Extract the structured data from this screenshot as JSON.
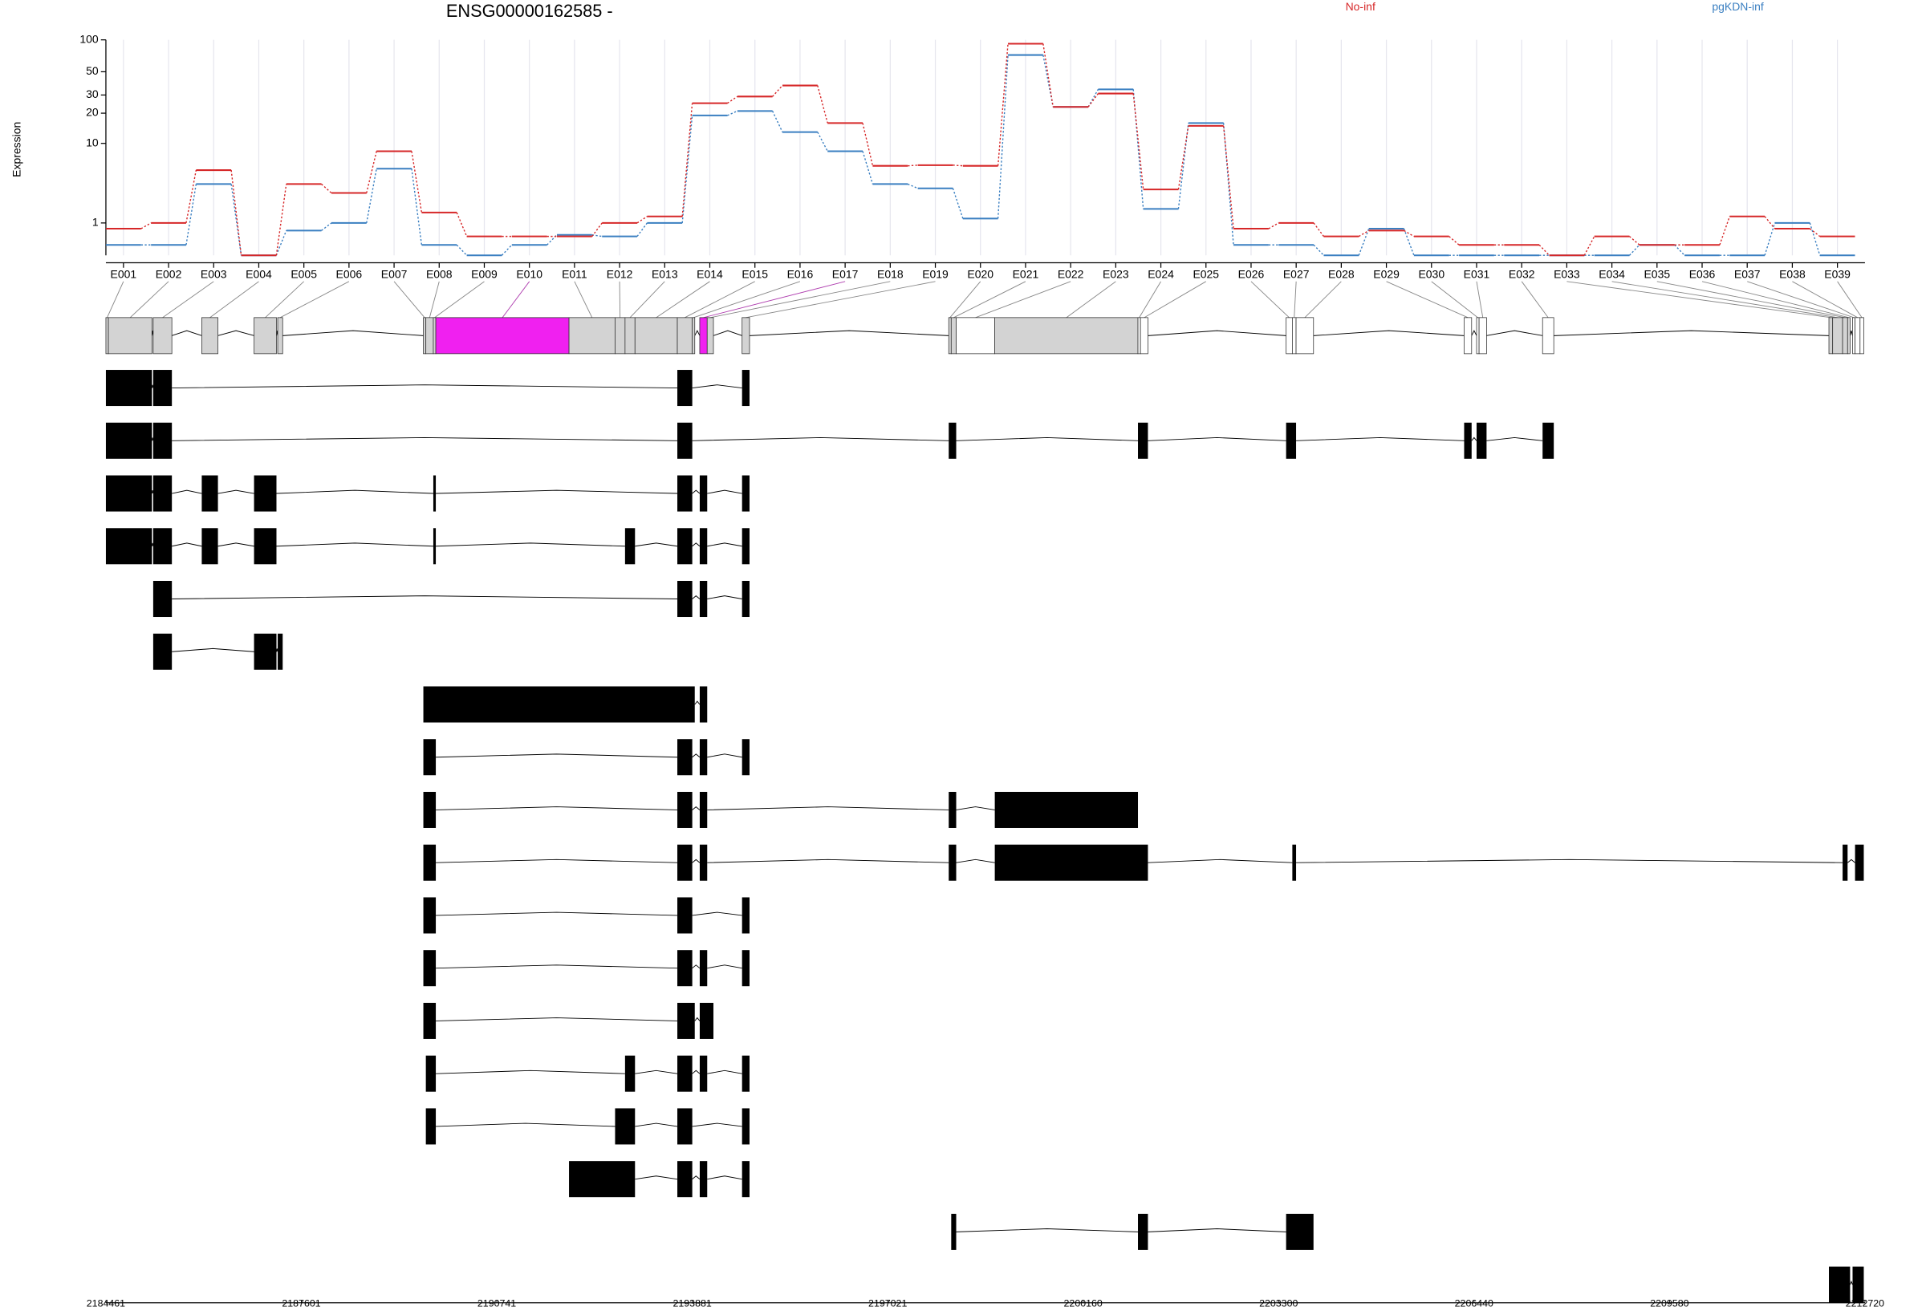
{
  "chart_data": {
    "type": "line",
    "title": "ENSG00000162585 -",
    "yaxis_label": "Expression",
    "scale": "log1p",
    "grid": true,
    "legend": "top",
    "categories": [
      "E001",
      "E002",
      "E003",
      "E004",
      "E005",
      "E006",
      "E007",
      "E008",
      "E009",
      "E010",
      "E011",
      "E012",
      "E013",
      "E014",
      "E015",
      "E016",
      "E017",
      "E018",
      "E019",
      "E020",
      "E021",
      "E022",
      "E023",
      "E024",
      "E025",
      "E026",
      "E027",
      "E028",
      "E029",
      "E030",
      "E031",
      "E032",
      "E033",
      "E034",
      "E035",
      "E036",
      "E037",
      "E038",
      "E039"
    ],
    "series": [
      {
        "name": "No-inf",
        "color": "#d62728",
        "values": [
          0.77,
          1.0,
          5.2,
          0,
          3.6,
          2.8,
          8.3,
          1.5,
          0.5,
          0.5,
          0.5,
          1.0,
          1.3,
          25,
          29,
          37,
          16,
          5.8,
          5.9,
          5.8,
          92,
          23,
          31,
          3.1,
          15,
          0.77,
          1.0,
          0.5,
          0.7,
          0.5,
          0.25,
          0.25,
          0,
          0.5,
          0.25,
          0.25,
          1.3,
          0.77,
          0.5
        ]
      },
      {
        "name": "pgKDN-inf",
        "color": "#3a7fc1",
        "values": [
          0.25,
          0.25,
          3.6,
          0,
          0.7,
          1.0,
          5.4,
          0.25,
          0,
          0.25,
          0.55,
          0.5,
          1.0,
          19,
          21,
          13,
          8.3,
          3.6,
          3.2,
          1.2,
          72,
          23,
          34,
          1.7,
          16,
          0.25,
          0.25,
          0,
          0.77,
          0,
          0,
          0,
          0,
          0,
          0.25,
          0,
          0,
          1.0,
          0
        ]
      }
    ],
    "ylim": [
      0,
      100
    ],
    "yticks": [
      1,
      10,
      20,
      30,
      50,
      100
    ],
    "gene_model": {
      "exons": [
        [
          2184461,
          2184501
        ],
        [
          2184501,
          2185201
        ],
        [
          2185221,
          2185521
        ],
        [
          2186001,
          2186261
        ],
        [
          2186841,
          2187201
        ],
        [
          2187221,
          2187301
        ],
        [
          2189561,
          2189601
        ],
        [
          2189601,
          2189721
        ],
        [
          2189721,
          2189761
        ],
        [
          2189761,
          2191901
        ],
        [
          2191901,
          2192641
        ],
        [
          2192641,
          2192801
        ],
        [
          2192801,
          2192961
        ],
        [
          2192961,
          2193641
        ],
        [
          2193641,
          2193881
        ],
        [
          2193881,
          2193921
        ],
        [
          2194001,
          2194121
        ],
        [
          2194121,
          2194221
        ],
        [
          2194681,
          2194801
        ],
        [
          2198001,
          2198041
        ],
        [
          2198041,
          2198121
        ],
        [
          2198121,
          2198741
        ],
        [
          2198741,
          2201041
        ],
        [
          2201041,
          2201081
        ],
        [
          2201081,
          2201201
        ],
        [
          2203421,
          2203521
        ],
        [
          2203521,
          2203581
        ],
        [
          2203581,
          2203861
        ],
        [
          2206281,
          2206401
        ],
        [
          2206481,
          2206521
        ],
        [
          2206521,
          2206641
        ],
        [
          2207541,
          2207721
        ],
        [
          2212141,
          2212201
        ],
        [
          2212201,
          2212361
        ],
        [
          2212361,
          2212441
        ],
        [
          2212441,
          2212481
        ],
        [
          2212521,
          2212561
        ],
        [
          2212561,
          2212641
        ],
        [
          2212641,
          2212701
        ]
      ],
      "highlighted": [
        9,
        16
      ],
      "highlight_color": "#f020f0",
      "unexpressed": [
        21,
        23,
        24,
        25,
        26,
        27,
        28,
        29,
        30,
        31,
        36,
        37,
        38
      ],
      "transcripts": [
        [
          0,
          1,
          2,
          14,
          18
        ],
        [
          0,
          1,
          2,
          14,
          19,
          20,
          23,
          24,
          25,
          26,
          28,
          29,
          30,
          31
        ],
        [
          0,
          1,
          2,
          3,
          4,
          8,
          14,
          16,
          18
        ],
        [
          0,
          1,
          2,
          3,
          4,
          8,
          12,
          14,
          16,
          18
        ],
        [
          2,
          14,
          16,
          18
        ],
        [
          2,
          4,
          5
        ],
        [
          6,
          7,
          8,
          9,
          10,
          11,
          12,
          13,
          14,
          15,
          16
        ],
        [
          6,
          7,
          8,
          14,
          16,
          18
        ],
        [
          6,
          7,
          8,
          14,
          16,
          19,
          20,
          22
        ],
        [
          6,
          7,
          8,
          14,
          16,
          19,
          20,
          22,
          23,
          24,
          26,
          34,
          37,
          38
        ],
        [
          6,
          7,
          8,
          14,
          18
        ],
        [
          6,
          7,
          8,
          14,
          16,
          18
        ],
        [
          6,
          7,
          8,
          14,
          15,
          16,
          17
        ],
        [
          7,
          8,
          12,
          14,
          16,
          18
        ],
        [
          7,
          8,
          11,
          12,
          14,
          18
        ],
        [
          10,
          11,
          12,
          14,
          16,
          18
        ],
        [
          20,
          23,
          24,
          25,
          26,
          27
        ],
        [
          32,
          33,
          34,
          35,
          36,
          37,
          38
        ]
      ],
      "xlim": [
        2184461,
        2212720
      ],
      "xticks": [
        2184461,
        2187601,
        2190741,
        2193881,
        2197021,
        2200160,
        2203300,
        2206440,
        2209580,
        2212720
      ]
    }
  }
}
